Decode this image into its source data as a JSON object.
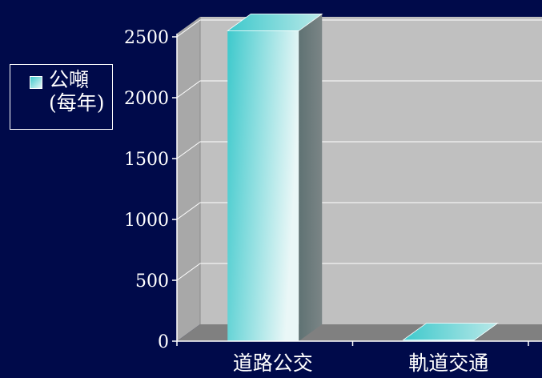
{
  "chart_data": {
    "type": "bar",
    "categories": [
      "道路公交",
      "軌道交通"
    ],
    "series": [
      {
        "name": "公噸 (每年)",
        "values": [
          2550,
          10
        ]
      }
    ],
    "yticks": [
      "0",
      "500",
      "1000",
      "1500",
      "2000",
      "2500"
    ],
    "ylim": [
      0,
      2500
    ],
    "grid": true,
    "legend_position": "left",
    "title": "",
    "xlabel": "",
    "ylabel": "",
    "colors": {
      "background": "#000a4a",
      "plot_wall": "#c0c0c0",
      "plot_floor": "#808080",
      "bar_front_start": "#3ec9cc",
      "bar_front_end": "#eaf7f7",
      "bar_side": "#6b7778",
      "bar_top": "#7fd0d0",
      "text": "#ffffff"
    }
  }
}
